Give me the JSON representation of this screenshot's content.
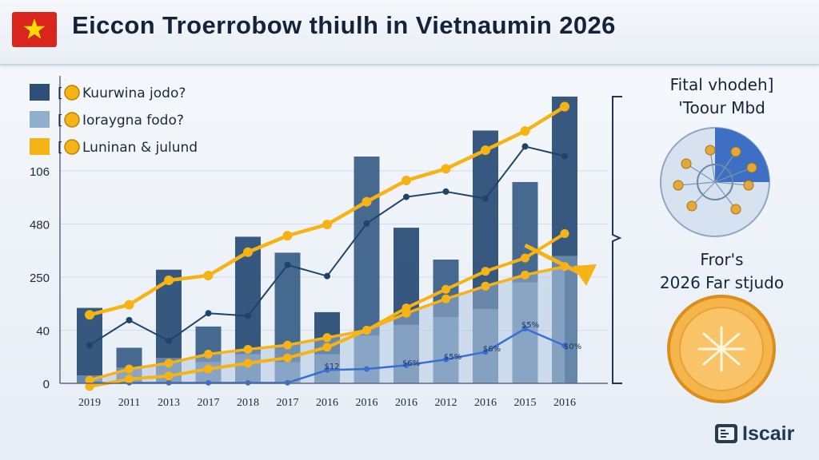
{
  "header": {
    "title": "Eiccon Troerrobow thiulh in Vietnaumin 2026",
    "flag_colors": {
      "field": "#da251d",
      "star": "#ffdd00"
    }
  },
  "side_panel": {
    "title_lines": [
      "Fital vhodeh]",
      "'Toour Mbd"
    ],
    "subtitle_lines": [
      "Fror's",
      "2026 Far stjudo"
    ],
    "icons": [
      "network-globe-icon",
      "gold-coin-icon"
    ]
  },
  "brand": {
    "label": "Iscair",
    "icon": "brand-mark-icon"
  },
  "colors": {
    "bar_dark": "#2c4f78",
    "bar_light": "#90aece",
    "line_gold": "#f5b316",
    "line_navy": "#1f4468",
    "line_blue": "#3b6ed2"
  },
  "chart_data": {
    "type": "bar",
    "legend_position": "top-left",
    "legend": [
      {
        "label": "Kuurwina jodo?",
        "color": "#2c4f78"
      },
      {
        "label": "Ioraygna fodo?",
        "color": "#90aece"
      },
      {
        "label": "Luninan & julund",
        "color": "#f5b316"
      }
    ],
    "x_categories": [
      "2019",
      "2011",
      "2013",
      "2017",
      "2018",
      "2017",
      "2016",
      "2016",
      "2016",
      "2012",
      "2016",
      "2015",
      "2016"
    ],
    "y_tick_labels": [
      "0",
      "40",
      "250",
      "480",
      "106"
    ],
    "y_tick_values": [
      0,
      1,
      2,
      3,
      4
    ],
    "series": [
      {
        "name": "Kuurwina jodo?",
        "type": "bar",
        "values": [
          1.42,
          0.67,
          2.14,
          1.07,
          2.76,
          2.46,
          1.34,
          4.27,
          2.93,
          2.33,
          4.76,
          3.79,
          5.4
        ]
      },
      {
        "name": "Ioraygna fodo?",
        "type": "bar",
        "values": [
          0.15,
          0.3,
          0.48,
          0.4,
          0.55,
          0.4,
          0.55,
          0.9,
          1.1,
          1.25,
          1.4,
          1.9,
          2.4
        ]
      },
      {
        "name": "Luninan & julund",
        "type": "line",
        "values": [
          1.29,
          1.48,
          1.94,
          2.03,
          2.47,
          2.78,
          2.99,
          3.42,
          3.82,
          4.04,
          4.39,
          4.75,
          5.21
        ]
      },
      {
        "type": "line",
        "values": [
          0.06,
          0.27,
          0.38,
          0.55,
          0.64,
          0.72,
          0.86,
          1.0,
          1.32,
          1.59,
          1.83,
          2.04,
          2.2
        ]
      },
      {
        "type": "line",
        "values": [
          -0.06,
          0.08,
          0.14,
          0.27,
          0.38,
          0.48,
          0.68,
          1.0,
          1.42,
          1.77,
          2.11,
          2.36,
          2.82
        ]
      },
      {
        "type": "line",
        "values": [
          0.72,
          1.19,
          0.8,
          1.32,
          1.27,
          2.23,
          2.02,
          3.01,
          3.51,
          3.61,
          3.48,
          4.46,
          4.28
        ]
      },
      {
        "type": "line",
        "values": [
          0.01,
          0.01,
          0.01,
          0.01,
          0.01,
          0.01,
          0.25,
          0.27,
          0.34,
          0.45,
          0.59,
          1.03,
          0.71
        ]
      }
    ],
    "annotations": [
      "$12",
      "$6%",
      "$5%",
      "$6%",
      "$5%",
      "$0%"
    ]
  }
}
